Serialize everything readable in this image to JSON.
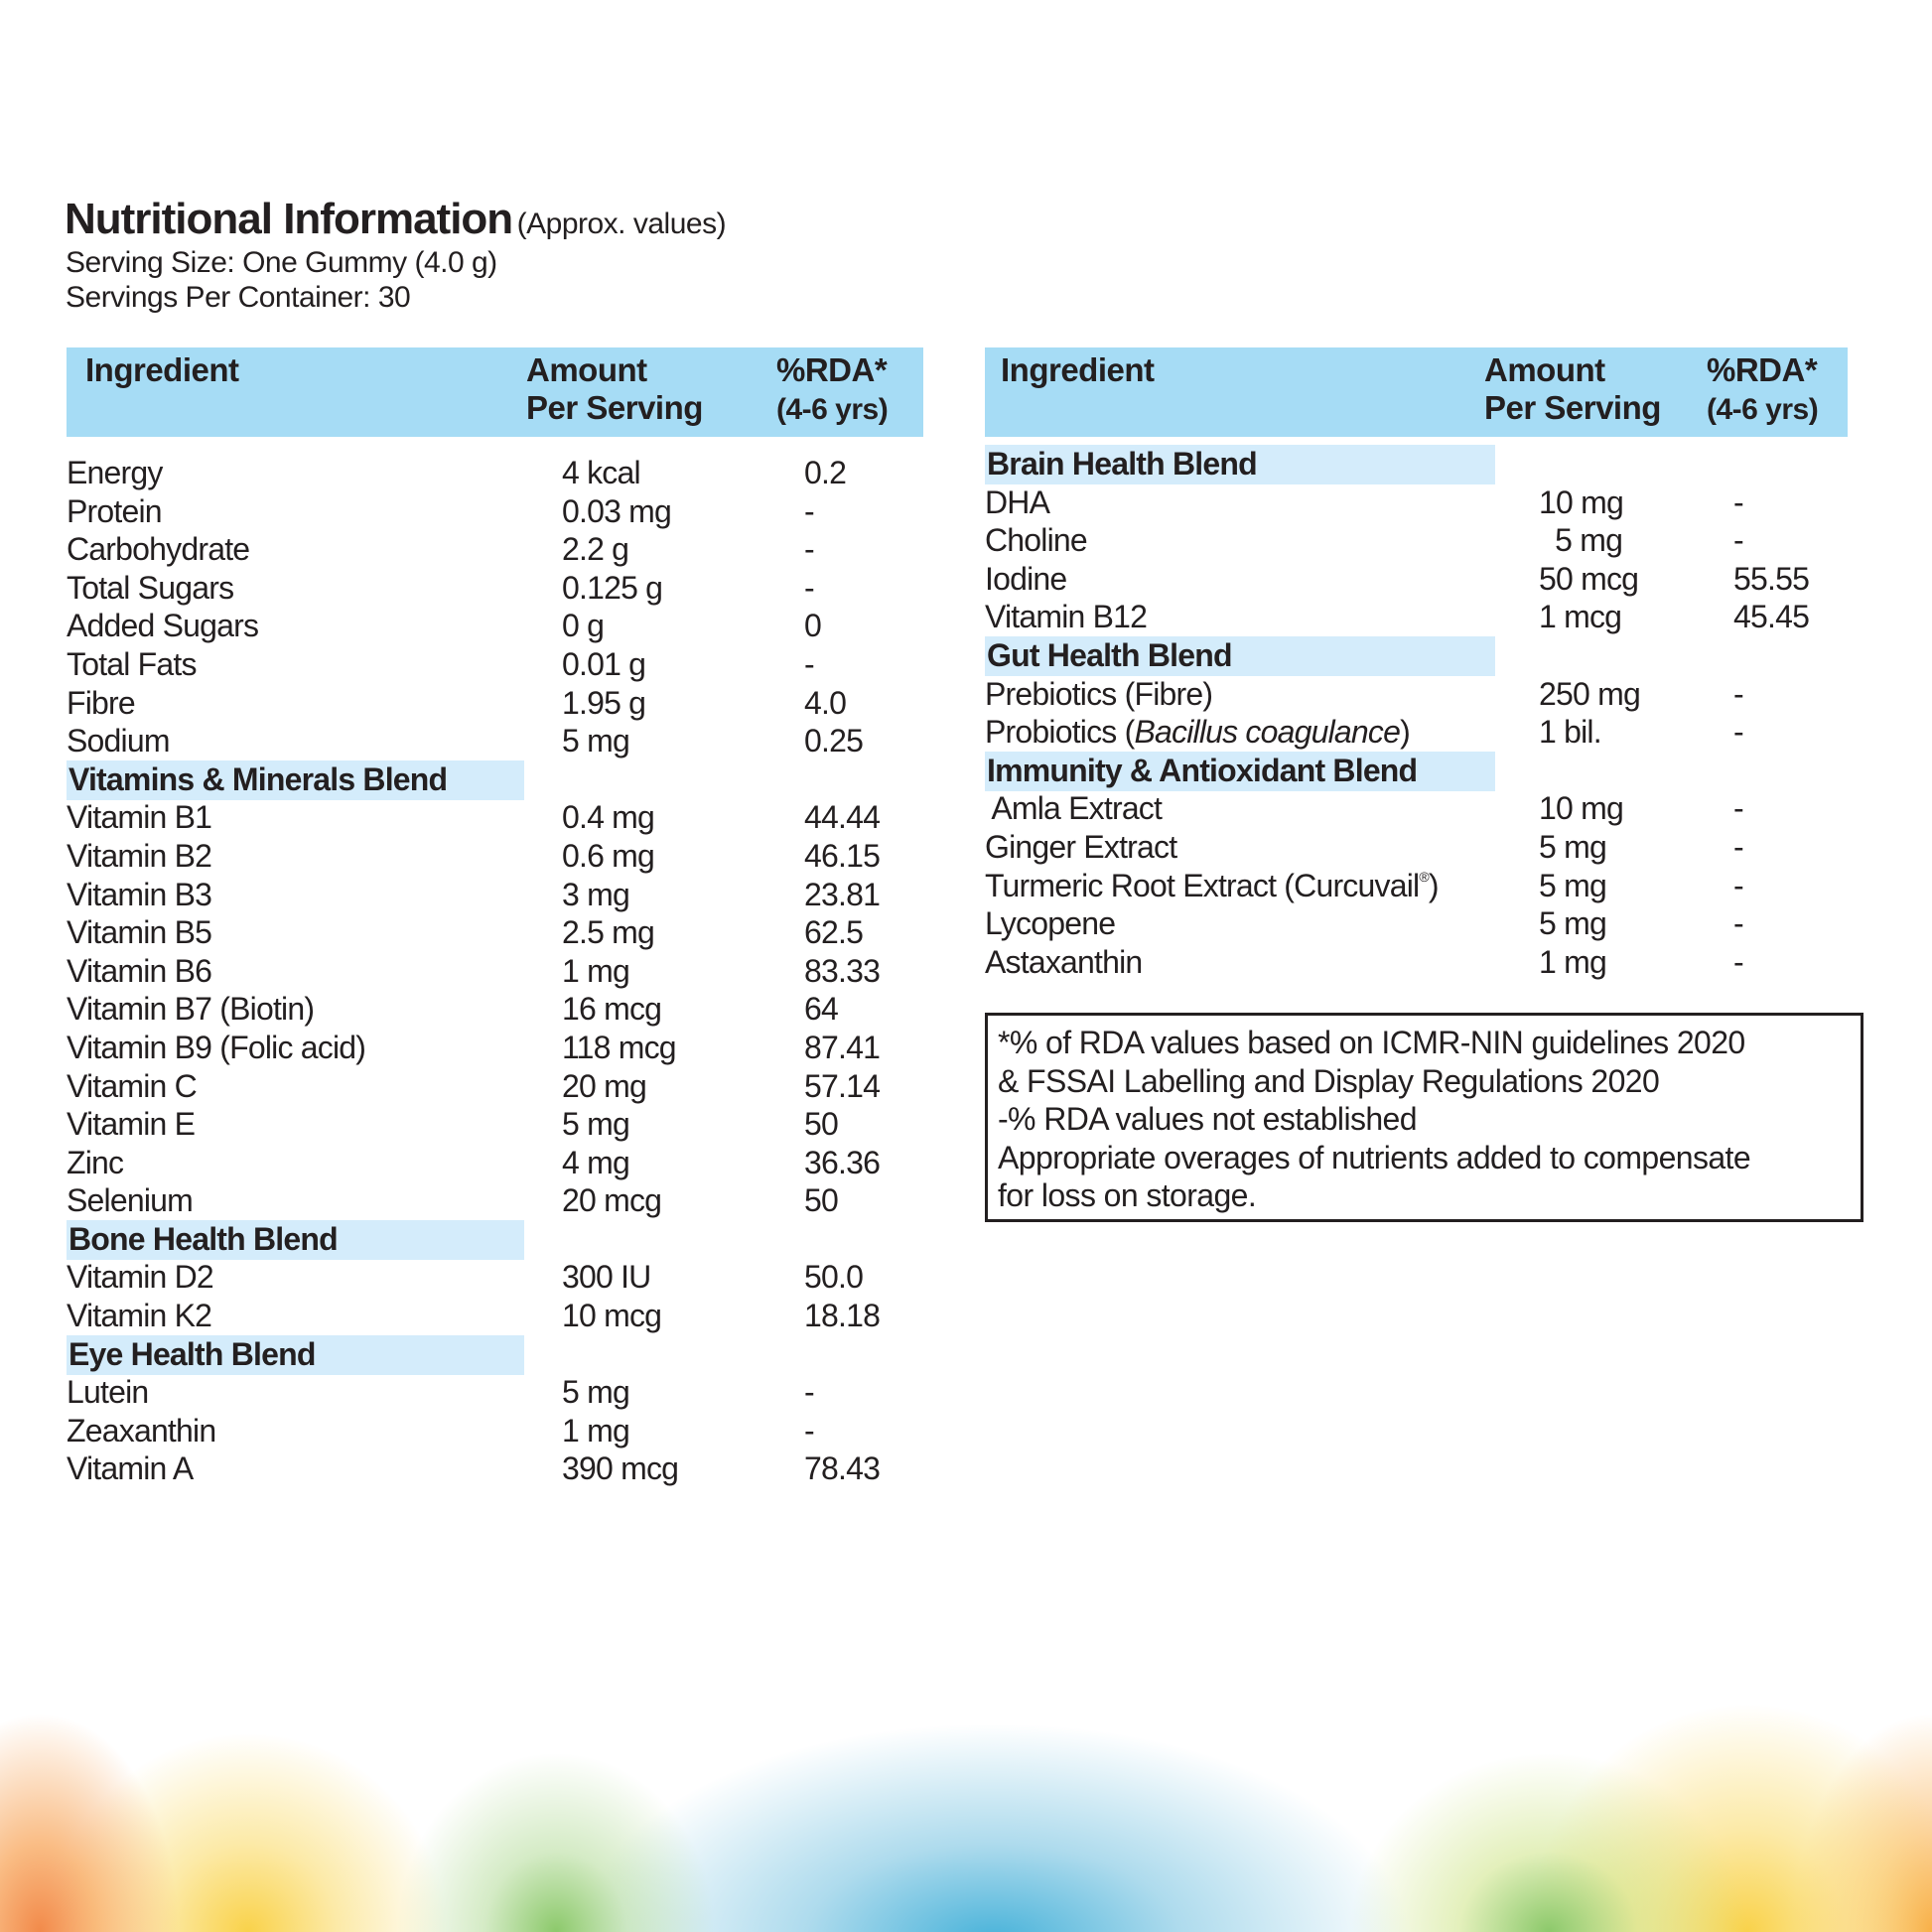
{
  "header": {
    "title": "Nutritional Information",
    "title_note": "(Approx. values)",
    "serving_size": "Serving Size: One Gummy (4.0 g)",
    "servings_per_container": "Servings Per Container: 30"
  },
  "columns": {
    "ingredient": "Ingredient",
    "amount_1": "Amount",
    "amount_2": "Per Serving",
    "rda_1": "%RDA*",
    "rda_2": "(4-6 yrs)"
  },
  "colors": {
    "header_bg": "#a6dcf5",
    "blend_bg": "#d4ecfb",
    "text": "#231f20"
  },
  "left_rows": [
    {
      "name": "Energy",
      "amount": "4 kcal",
      "rda": "0.2"
    },
    {
      "name": "Protein",
      "amount": "0.03 mg",
      "rda": "-"
    },
    {
      "name": "Carbohydrate",
      "amount": "2.2 g",
      "rda": "-"
    },
    {
      "name": "Total Sugars",
      "amount": "0.125 g",
      "rda": "-"
    },
    {
      "name": "Added Sugars",
      "amount": "0 g",
      "rda": "0"
    },
    {
      "name": "Total Fats",
      "amount": "0.01 g",
      "rda": "-"
    },
    {
      "name": "Fibre",
      "amount": "1.95 g",
      "rda": "4.0"
    },
    {
      "name": "Sodium",
      "amount": "5 mg",
      "rda": "0.25"
    },
    {
      "blend": "Vitamins & Minerals Blend"
    },
    {
      "name": "Vitamin B1",
      "amount": "0.4 mg",
      "rda": "44.44"
    },
    {
      "name": "Vitamin B2",
      "amount": "0.6 mg",
      "rda": "46.15"
    },
    {
      "name": "Vitamin B3",
      "amount": "3 mg",
      "rda": "23.81"
    },
    {
      "name": "Vitamin B5",
      "amount": "2.5 mg",
      "rda": "62.5"
    },
    {
      "name": "Vitamin B6",
      "amount": "1 mg",
      "rda": "83.33"
    },
    {
      "name": "Vitamin B7 (Biotin)",
      "amount": "16 mcg",
      "rda": "64"
    },
    {
      "name": "Vitamin B9 (Folic acid)",
      "amount": "118 mcg",
      "rda": "87.41"
    },
    {
      "name": "Vitamin C",
      "amount": "20 mg",
      "rda": "57.14"
    },
    {
      "name": "Vitamin E",
      "amount": "5 mg",
      "rda": "50"
    },
    {
      "name": "Zinc",
      "amount": "4 mg",
      "rda": "36.36"
    },
    {
      "name": "Selenium",
      "amount": "20 mcg",
      "rda": "50"
    },
    {
      "blend": "Bone Health Blend"
    },
    {
      "name": "Vitamin D2",
      "amount": "300 IU",
      "rda": "50.0"
    },
    {
      "name": "Vitamin K2",
      "amount": "10 mcg",
      "rda": "18.18"
    },
    {
      "blend": "Eye Health Blend"
    },
    {
      "name": "Lutein",
      "amount": "5 mg",
      "rda": "-"
    },
    {
      "name": "Zeaxanthin",
      "amount": "1 mg",
      "rda": "-"
    },
    {
      "name": "Vitamin A",
      "amount": "390 mcg",
      "rda": "78.43"
    }
  ],
  "right_rows": [
    {
      "blend": "Brain Health Blend"
    },
    {
      "name": "DHA",
      "amount": "10 mg",
      "rda": "-"
    },
    {
      "name": "Choline",
      "amount": "  5 mg",
      "rda": "-"
    },
    {
      "name": "Iodine",
      "amount": "50 mcg",
      "rda": "55.55"
    },
    {
      "name": "Vitamin B12",
      "amount": "1 mcg",
      "rda": "45.45"
    },
    {
      "blend": "Gut Health Blend"
    },
    {
      "name": "Prebiotics (Fibre)",
      "amount": "250 mg",
      "rda": "-"
    },
    {
      "name": "Probiotics (",
      "italic": "Bacillus coagulance",
      "suffix": ")",
      "amount": "1 bil.",
      "rda": "-"
    },
    {
      "blend": "Immunity & Antioxidant Blend"
    },
    {
      "name": " Amla Extract",
      "amount": "10 mg",
      "rda": "-"
    },
    {
      "name": "Ginger Extract",
      "amount": "5 mg",
      "rda": "-"
    },
    {
      "name": "Turmeric Root Extract (Curcuvail",
      "sup": "®",
      "suffix": ")",
      "amount": "5 mg",
      "rda": "-"
    },
    {
      "name": "Lycopene",
      "amount": "5 mg",
      "rda": "-"
    },
    {
      "name": "Astaxanthin",
      "amount": "1 mg",
      "rda": "-"
    }
  ],
  "note": [
    "*% of RDA values based on ICMR-NIN guidelines 2020",
    "& FSSAI Labelling and Display Regulations 2020",
    "-% RDA values not established",
    "Appropriate overages of nutrients added to compensate",
    "for loss on storage."
  ]
}
